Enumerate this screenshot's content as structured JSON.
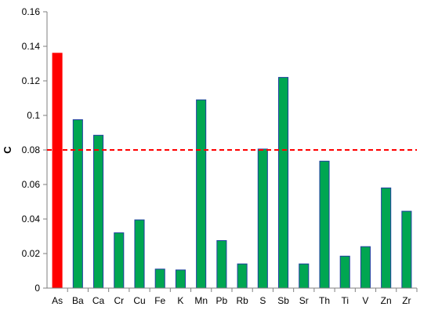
{
  "chart_data": {
    "type": "bar",
    "title": "",
    "xlabel": "",
    "ylabel": "C",
    "ylim": [
      0,
      0.16
    ],
    "yticks": [
      0,
      0.02,
      0.04,
      0.06,
      0.08,
      0.1,
      0.12,
      0.14,
      0.16
    ],
    "ytick_labels": [
      "0",
      "0.02",
      "0.04",
      "0.06",
      "0.08",
      "0.1",
      "0.12",
      "0.14",
      "0.16"
    ],
    "grid": false,
    "categories": [
      "As",
      "Ba",
      "Ca",
      "Cr",
      "Cu",
      "Fe",
      "K",
      "Mn",
      "Pb",
      "Rb",
      "S",
      "Sb",
      "Sr",
      "Th",
      "Ti",
      "V",
      "Zn",
      "Zr"
    ],
    "values": [
      0.136,
      0.0975,
      0.0885,
      0.032,
      0.0395,
      0.011,
      0.0105,
      0.109,
      0.0275,
      0.014,
      0.0805,
      0.122,
      0.014,
      0.0735,
      0.0185,
      0.024,
      0.058,
      0.0445
    ],
    "bar_colors": {
      "default_fill": "#00a651",
      "default_stroke": "#1f3f9f",
      "highlight_fill": "#ff0000",
      "highlight_categories": [
        "As"
      ]
    },
    "reference_line": {
      "value": 0.08,
      "color": "#ff0000",
      "style": "dashed"
    }
  }
}
